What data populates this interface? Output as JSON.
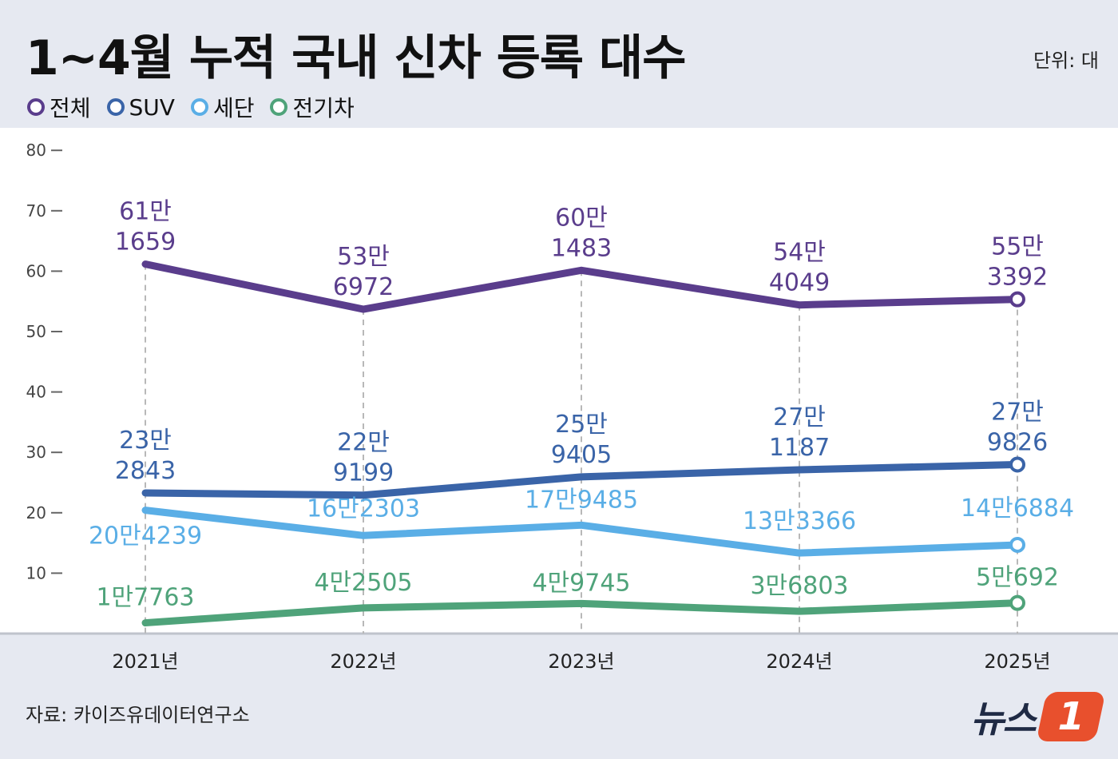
{
  "title": "1~4월 누적 국내 신차 등록 대수",
  "unit_label": "단위: 대",
  "source": "자료: 카이즈유데이터연구소",
  "logo": {
    "text": "뉴스",
    "badge": "1"
  },
  "legend": [
    {
      "label": "전체",
      "color": "#5a3d8c"
    },
    {
      "label": "SUV",
      "color": "#3a64a8"
    },
    {
      "label": "세단",
      "color": "#5aaee6"
    },
    {
      "label": "전기차",
      "color": "#4fa37a"
    }
  ],
  "chart_data": {
    "type": "line",
    "title": "1~4월 누적 국내 신차 등록 대수",
    "categories": [
      "2021년",
      "2022년",
      "2023년",
      "2024년",
      "2025년"
    ],
    "yticks": [
      "10",
      "20",
      "30",
      "40",
      "50",
      "60",
      "70",
      "80"
    ],
    "ylim": [
      0,
      80
    ],
    "grid": false,
    "legend_position": "top-left",
    "series": [
      {
        "name": "전체",
        "color": "#5a3d8c",
        "values": [
          611659,
          536972,
          601483,
          544049,
          553392
        ],
        "labels": [
          [
            "61만",
            "1659"
          ],
          [
            "53만",
            "6972"
          ],
          [
            "60만",
            "1483"
          ],
          [
            "54만",
            "4049"
          ],
          [
            "55만",
            "3392"
          ]
        ]
      },
      {
        "name": "SUV",
        "color": "#3a64a8",
        "values": [
          232843,
          229199,
          259405,
          271187,
          279826
        ],
        "labels": [
          [
            "23만",
            "2843"
          ],
          [
            "22만",
            "9199"
          ],
          [
            "25만",
            "9405"
          ],
          [
            "27만",
            "1187"
          ],
          [
            "27만",
            "9826"
          ]
        ]
      },
      {
        "name": "세단",
        "color": "#5aaee6",
        "values": [
          204239,
          162303,
          179485,
          133366,
          146884
        ],
        "labels": [
          [
            "20만4239"
          ],
          [
            "16만2303"
          ],
          [
            "17만9485"
          ],
          [
            "13만3366"
          ],
          [
            "14만6884"
          ]
        ]
      },
      {
        "name": "전기차",
        "color": "#4fa37a",
        "values": [
          17763,
          42505,
          49745,
          36803,
          50692
        ],
        "labels": [
          [
            "1만7763"
          ],
          [
            "4만2505"
          ],
          [
            "4만9745"
          ],
          [
            "3만6803"
          ],
          [
            "5만692"
          ]
        ]
      }
    ]
  }
}
